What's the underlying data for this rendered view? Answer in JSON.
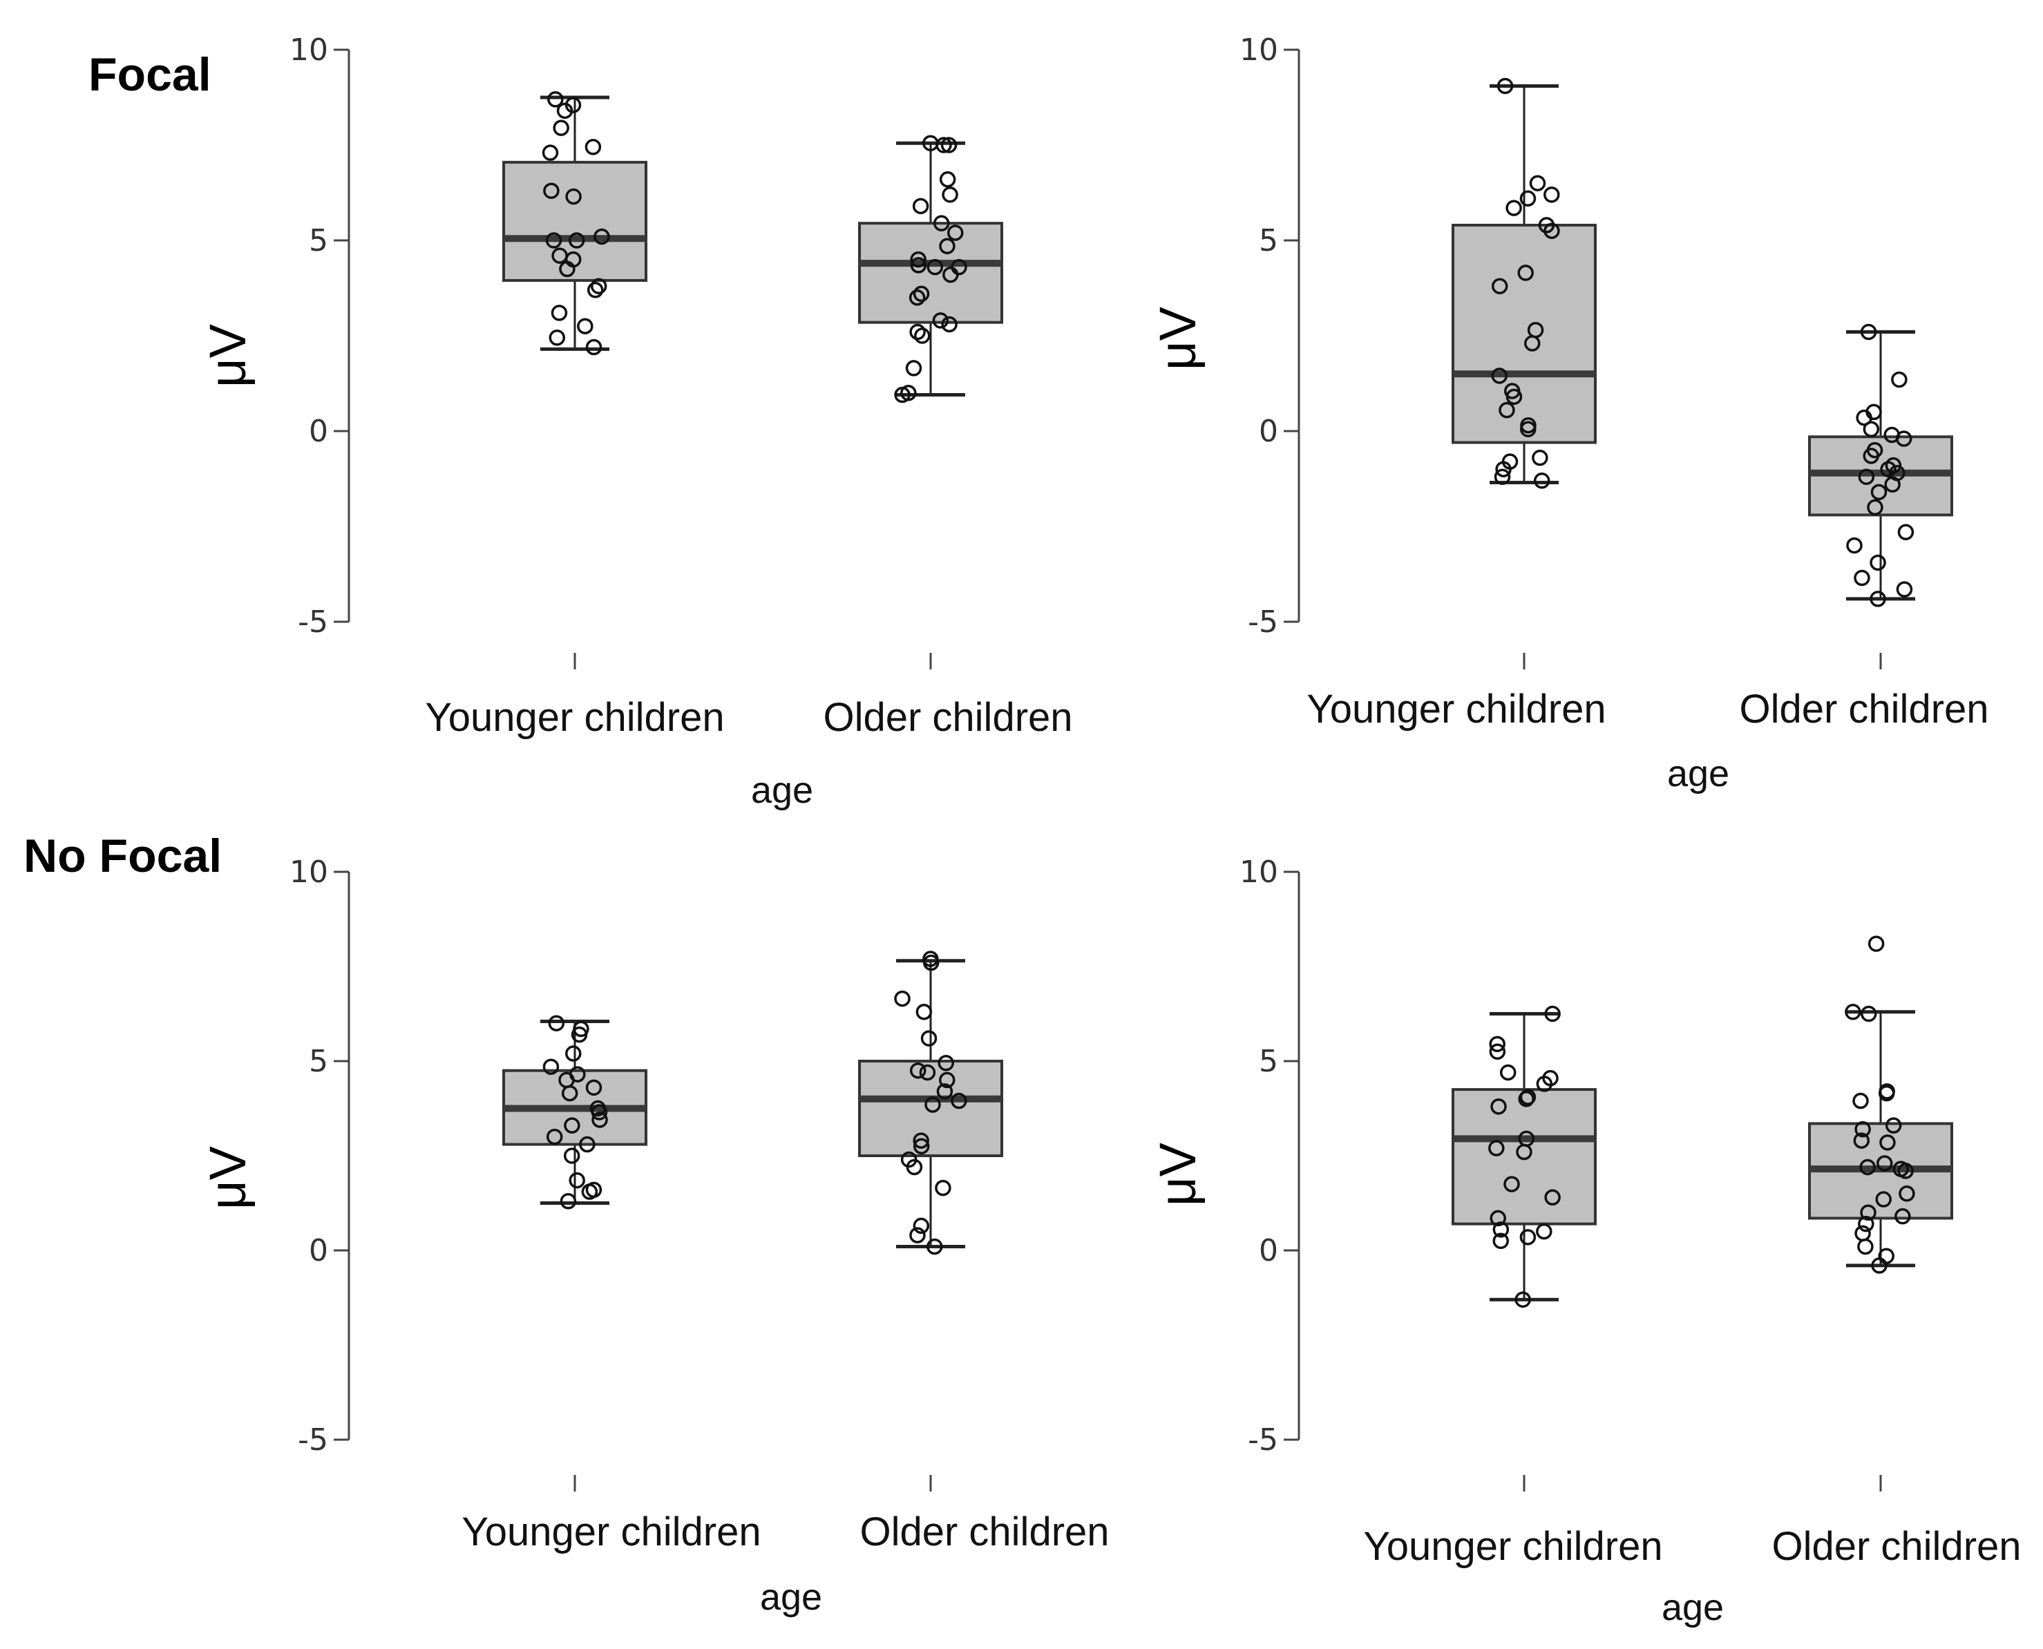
{
  "row_labels": [
    "Focal",
    "No Focal"
  ],
  "chart_data": [
    {
      "type": "box",
      "panel": "top-left",
      "row_label": "Focal",
      "ylabel": "μV",
      "xlabel": "age",
      "ylim": [
        -5,
        10
      ],
      "yticks": [
        10,
        5,
        0,
        -5
      ],
      "ytick_labels": [
        "10",
        "5",
        "0",
        "-5"
      ],
      "categories": [
        "Younger children",
        "Older children"
      ],
      "boxes": [
        {
          "q1": 3.95,
          "median": 5.05,
          "q3": 7.05,
          "whisker_low": 2.15,
          "whisker_high": 8.75
        },
        {
          "q1": 2.85,
          "median": 4.4,
          "q3": 5.45,
          "whisker_low": 0.95,
          "whisker_high": 7.55
        }
      ],
      "points": [
        [
          8.7,
          8.55,
          8.4,
          7.95,
          7.45,
          7.3,
          6.3,
          6.15,
          5.1,
          5.0,
          5.0,
          4.6,
          4.5,
          4.25,
          3.8,
          3.7,
          3.1,
          2.75,
          2.45,
          2.2
        ],
        [
          7.55,
          7.5,
          7.5,
          6.6,
          6.2,
          5.9,
          5.45,
          5.2,
          4.85,
          4.5,
          4.35,
          4.3,
          4.3,
          4.1,
          3.6,
          3.5,
          2.9,
          2.8,
          2.6,
          2.5,
          1.65,
          1.0,
          0.95
        ]
      ]
    },
    {
      "type": "box",
      "panel": "top-right",
      "ylabel": "μV",
      "xlabel": "age",
      "ylim": [
        -5,
        10
      ],
      "yticks": [
        10,
        5,
        0,
        -5
      ],
      "ytick_labels": [
        "10",
        "5",
        "0",
        "-5"
      ],
      "categories": [
        "Younger children",
        "Older children"
      ],
      "boxes": [
        {
          "q1": -0.3,
          "median": 1.5,
          "q3": 5.4,
          "whisker_low": -1.35,
          "whisker_high": 9.05
        },
        {
          "q1": -2.2,
          "median": -1.1,
          "q3": -0.15,
          "whisker_low": -4.4,
          "whisker_high": 2.6
        }
      ],
      "points": [
        [
          9.05,
          6.5,
          6.2,
          6.1,
          5.85,
          5.4,
          5.25,
          4.15,
          3.8,
          2.65,
          2.3,
          1.45,
          1.05,
          0.9,
          0.55,
          0.15,
          0.05,
          -0.7,
          -0.8,
          -1.0,
          -1.2,
          -1.3
        ],
        [
          2.6,
          1.35,
          0.5,
          0.35,
          0.05,
          -0.1,
          -0.2,
          -0.5,
          -0.65,
          -0.9,
          -1.0,
          -1.1,
          -1.2,
          -1.4,
          -1.6,
          -2.0,
          -2.65,
          -3.0,
          -3.45,
          -3.85,
          -4.15,
          -4.4
        ]
      ]
    },
    {
      "type": "box",
      "panel": "bottom-left",
      "row_label": "No Focal",
      "ylabel": "μV",
      "xlabel": "age",
      "ylim": [
        -5,
        10
      ],
      "yticks": [
        10,
        5,
        0,
        -5
      ],
      "ytick_labels": [
        "10",
        "5",
        "0",
        "-5"
      ],
      "categories": [
        "Younger children",
        "Older children"
      ],
      "boxes": [
        {
          "q1": 2.8,
          "median": 3.75,
          "q3": 4.75,
          "whisker_low": 1.25,
          "whisker_high": 6.05
        },
        {
          "q1": 2.5,
          "median": 4.0,
          "q3": 5.0,
          "whisker_low": 0.1,
          "whisker_high": 7.65
        }
      ],
      "points": [
        [
          6.0,
          5.85,
          5.7,
          5.2,
          4.85,
          4.65,
          4.5,
          4.3,
          4.15,
          3.75,
          3.65,
          3.45,
          3.3,
          3.0,
          2.8,
          2.5,
          1.85,
          1.6,
          1.55,
          1.3
        ],
        [
          7.7,
          7.6,
          6.65,
          6.3,
          5.6,
          4.95,
          4.75,
          4.7,
          4.5,
          4.2,
          3.95,
          3.85,
          2.9,
          2.75,
          2.4,
          2.2,
          1.65,
          0.65,
          0.4,
          0.1
        ]
      ]
    },
    {
      "type": "box",
      "panel": "bottom-right",
      "ylabel": "μV",
      "xlabel": "age",
      "ylim": [
        -5,
        10
      ],
      "yticks": [
        10,
        5,
        0,
        -5
      ],
      "ytick_labels": [
        "10",
        "5",
        "0",
        "-5"
      ],
      "categories": [
        "Younger children",
        "Older children"
      ],
      "boxes": [
        {
          "q1": 0.7,
          "median": 2.95,
          "q3": 4.25,
          "whisker_low": -1.3,
          "whisker_high": 6.25
        },
        {
          "q1": 0.85,
          "median": 2.15,
          "q3": 3.35,
          "whisker_low": -0.4,
          "whisker_high": 6.3
        }
      ],
      "points": [
        [
          6.25,
          5.45,
          5.25,
          4.7,
          4.55,
          4.4,
          4.05,
          4.0,
          3.8,
          2.95,
          2.7,
          2.6,
          1.75,
          1.4,
          0.85,
          0.55,
          0.5,
          0.35,
          0.25,
          -1.3
        ],
        [
          8.1,
          6.3,
          6.25,
          4.2,
          4.15,
          3.95,
          3.3,
          3.2,
          2.9,
          2.85,
          2.3,
          2.2,
          2.15,
          2.1,
          1.5,
          1.35,
          1.0,
          0.9,
          0.7,
          0.45,
          0.1,
          -0.15,
          -0.4
        ]
      ]
    }
  ]
}
